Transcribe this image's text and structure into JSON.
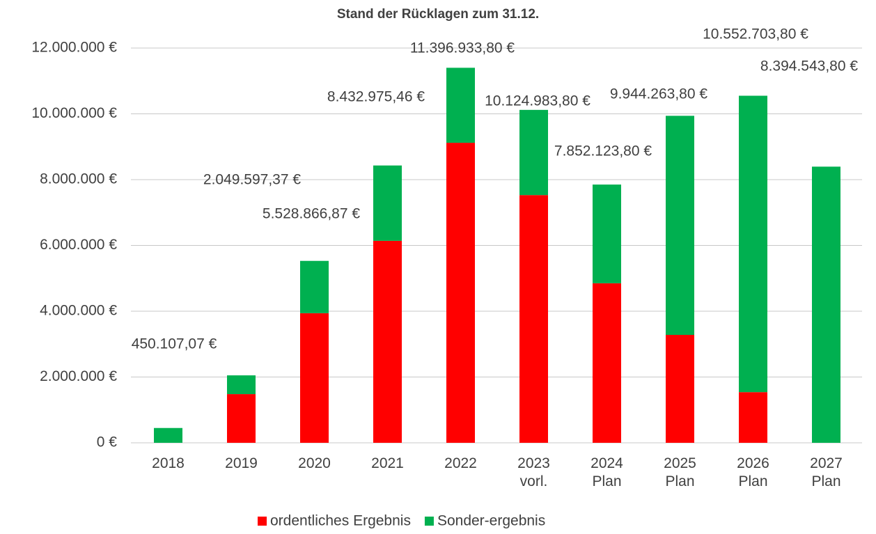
{
  "chart_data": {
    "type": "stacked-bar",
    "title": "Stand der Rücklagen zum 31.12.",
    "categories": [
      [
        "2018"
      ],
      [
        "2019"
      ],
      [
        "2020"
      ],
      [
        "2021"
      ],
      [
        "2022"
      ],
      [
        "2023",
        "vorl."
      ],
      [
        "2024",
        "Plan"
      ],
      [
        "2025",
        "Plan"
      ],
      [
        "2026",
        "Plan"
      ],
      [
        "2027",
        "Plan"
      ]
    ],
    "series": [
      {
        "name": "ordentliches Ergebnis",
        "color": "#ff0000",
        "values": [
          0,
          1480000,
          3940000,
          6140000,
          9120000,
          7530000,
          4850000,
          3280000,
          1540000,
          0
        ]
      },
      {
        "name": "Sonder-ergebnis",
        "color": "#00b050",
        "values": [
          450107.07,
          570000,
          1590000,
          2290000,
          2280000,
          2590000,
          3000000,
          6660000,
          9010000,
          8394543.8
        ]
      }
    ],
    "totals": [
      450107.07,
      2049597.37,
      5528866.87,
      8432975.46,
      11396933.8,
      10124983.8,
      7852123.8,
      9944263.8,
      10552703.8,
      8394543.8
    ],
    "total_labels": [
      "450.107,07 €",
      "2.049.597,37 €",
      "5.528.866,87 €",
      "8.432.975,46 €",
      "11.396.933,80 €",
      "10.124.983,80 €",
      "7.852.123,80 €",
      "9.944.263,80 €",
      "10.552.703,80 €",
      "8.394.543,80 €"
    ],
    "ylim": [
      0,
      12000000
    ],
    "yticks": [
      {
        "value": 0,
        "label": "0 €"
      },
      {
        "value": 2000000,
        "label": "2.000.000 €"
      },
      {
        "value": 4000000,
        "label": "4.000.000 €"
      },
      {
        "value": 6000000,
        "label": "6.000.000 €"
      },
      {
        "value": 8000000,
        "label": "8.000.000 €"
      },
      {
        "value": 10000000,
        "label": "10.000.000 €"
      },
      {
        "value": 12000000,
        "label": "12.000.000 €"
      }
    ],
    "grid": true,
    "legend": "bottom"
  }
}
